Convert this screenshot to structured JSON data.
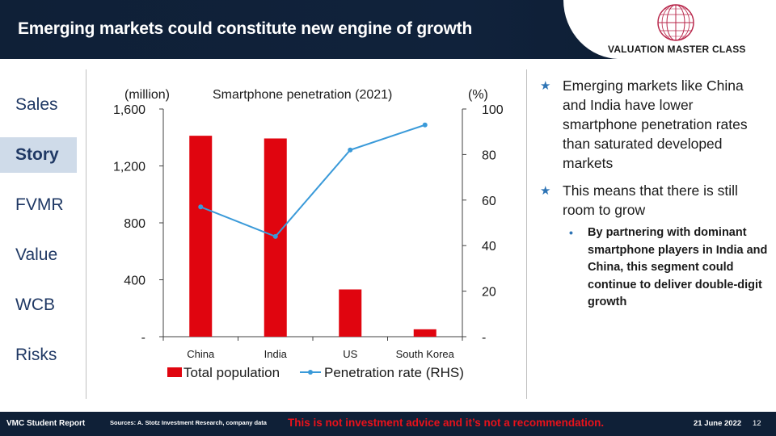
{
  "header": {
    "title": "Emerging markets could constitute new engine of growth",
    "logo_text": "VALUATION MASTER CLASS",
    "logo_icon": "globe-icon"
  },
  "nav": {
    "items": [
      {
        "label": "Sales",
        "active": false
      },
      {
        "label": "Story",
        "active": true
      },
      {
        "label": "FVMR",
        "active": false
      },
      {
        "label": "Value",
        "active": false
      },
      {
        "label": "WCB",
        "active": false
      },
      {
        "label": "Risks",
        "active": false
      }
    ]
  },
  "chart_data": {
    "type": "bar",
    "title": "Smartphone penetration (2021)",
    "ylabel_left": "(million)",
    "ylabel_right": "(%)",
    "categories": [
      "China",
      "India",
      "US",
      "South Korea"
    ],
    "series": [
      {
        "name": "Total population",
        "type": "bar",
        "axis": "left",
        "color": "#e0050f",
        "values": [
          1412,
          1393,
          332,
          52
        ]
      },
      {
        "name": "Penetration rate (RHS)",
        "type": "line",
        "axis": "right",
        "color": "#3a9ad9",
        "values": [
          57,
          44,
          82,
          93
        ]
      }
    ],
    "left_axis": {
      "ylim": [
        0,
        1600
      ],
      "ticks": [
        0,
        400,
        800,
        1200,
        1600
      ],
      "tick_labels": [
        "-",
        "400",
        "800",
        "1,200",
        "1,600"
      ]
    },
    "right_axis": {
      "ylim": [
        0,
        100
      ],
      "ticks": [
        0,
        20,
        40,
        60,
        80,
        100
      ],
      "tick_labels": [
        "-",
        "20",
        "40",
        "60",
        "80",
        "100"
      ]
    },
    "grid": false,
    "legend_position": "bottom"
  },
  "bullets": [
    {
      "text": "Emerging markets like China and India have lower smartphone penetration rates than saturated developed markets",
      "sub": []
    },
    {
      "text": "This means that there is still room to grow",
      "sub": [
        "By partnering with dominant smartphone players in India and China, this segment could continue to deliver double-digit growth"
      ]
    }
  ],
  "footer": {
    "report_label": "VMC Student Report",
    "sources": "Sources: A. Stotz Investment Research, company data",
    "disclaimer": "This is not investment advice and it’s not a recommendation.",
    "date": "21 June 2022",
    "page": "12"
  }
}
